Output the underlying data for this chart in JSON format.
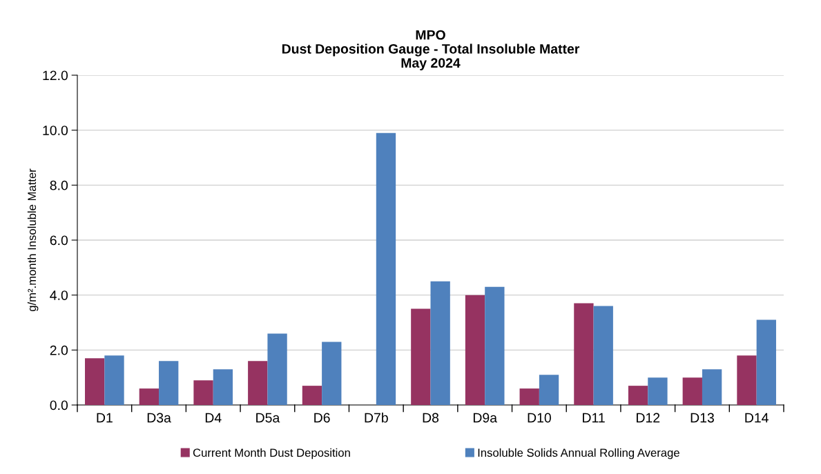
{
  "chart_data": {
    "type": "bar",
    "title": "MPO\nDust Deposition Gauge - Total Insoluble Matter\nMay 2024",
    "ylabel": "g/m².month Insoluble Matter",
    "categories": [
      "D1",
      "D3a",
      "D4",
      "D5a",
      "D6",
      "D7b",
      "D8",
      "D9a",
      "D10",
      "D11",
      "D12",
      "D13",
      "D14"
    ],
    "series": [
      {
        "name": "Current Month Dust Deposition",
        "color": "#963361",
        "values": [
          1.7,
          0.6,
          0.9,
          1.6,
          0.7,
          null,
          3.5,
          4.0,
          0.6,
          3.7,
          0.7,
          1.0,
          1.8
        ]
      },
      {
        "name": "Insoluble Solids Annual Rolling Average",
        "color": "#4f81bd",
        "values": [
          1.8,
          1.6,
          1.3,
          2.6,
          2.3,
          9.9,
          4.5,
          4.3,
          1.1,
          3.6,
          1.0,
          1.3,
          3.1
        ]
      }
    ],
    "ylim": [
      0,
      12
    ],
    "yticks": [
      {
        "value": 0,
        "label": "0.0"
      },
      {
        "value": 2,
        "label": "2.0"
      },
      {
        "value": 4,
        "label": "4.0"
      },
      {
        "value": 6,
        "label": "6.0"
      },
      {
        "value": 8,
        "label": "8.0"
      },
      {
        "value": 10,
        "label": "10.0"
      },
      {
        "value": 12,
        "label": "12.0"
      }
    ],
    "grid": "y",
    "legend": "bottom"
  }
}
